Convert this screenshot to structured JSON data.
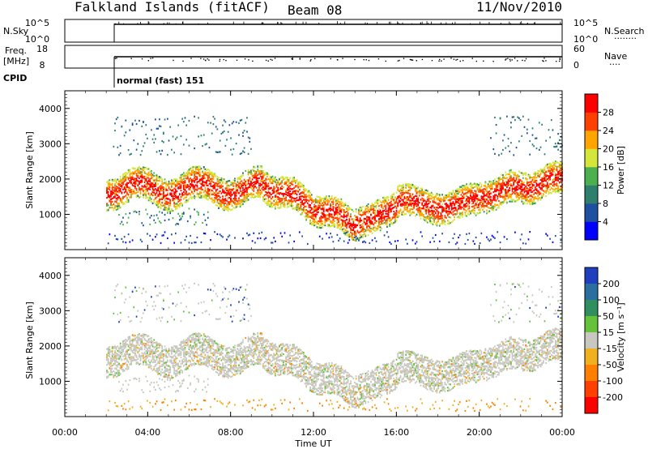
{
  "header": {
    "title": "Falkland Islands (fitACF)",
    "beam": "Beam 08",
    "date": "11/Nov/2010"
  },
  "chart_data": [
    {
      "type": "line",
      "name": "sky-search-panel",
      "left_label": "N.Sky",
      "right_label": "N.Search",
      "right_dots": "........",
      "left_ticks": [
        "10^5",
        "10^0"
      ],
      "right_ticks": [
        "10^5",
        "10^0"
      ],
      "start_time": "02:00"
    },
    {
      "type": "line",
      "name": "freq-nave-panel",
      "left_label_1": "Freq.",
      "left_label_2": "[MHz]",
      "right_label": "Nave",
      "right_dots": "....",
      "left_ticks": [
        "18",
        "8"
      ],
      "right_ticks": [
        "60",
        "0"
      ]
    },
    {
      "type": "table",
      "name": "cpid-panel",
      "label": "CPID",
      "mode": "normal (fast) 151"
    },
    {
      "type": "heatmap",
      "name": "power-panel",
      "ylabel": "Slant Range [km]",
      "ylim": [
        0,
        4500
      ],
      "y_ticks": [
        "1000",
        "2000",
        "3000",
        "4000"
      ],
      "colorbar_label": "Power [dB]",
      "colorbar_ticks": [
        "4",
        "8",
        "12",
        "16",
        "20",
        "24",
        "28"
      ],
      "colorbar_colors": [
        "#0000ff",
        "#1f4fa0",
        "#2f7f6f",
        "#4caf50",
        "#d4e63a",
        "#ffa500",
        "#ff4000",
        "#ff0000"
      ]
    },
    {
      "type": "heatmap",
      "name": "velocity-panel",
      "ylabel": "Slant Range [km]",
      "ylim": [
        0,
        4500
      ],
      "y_ticks": [
        "1000",
        "2000",
        "3000",
        "4000"
      ],
      "colorbar_label": "Velocity [m s⁻¹]",
      "colorbar_ticks": [
        "200",
        "100",
        "50",
        "15",
        "-15",
        "-50",
        "-100",
        "-200"
      ],
      "colorbar_colors": [
        "#1f3fbf",
        "#2a6fa0",
        "#2f8f5f",
        "#66c23a",
        "#c8c8c0",
        "#f0b020",
        "#ff8000",
        "#ff4000",
        "#ff0000"
      ]
    }
  ],
  "x_axis": {
    "label": "Time UT",
    "ticks": [
      "00:00",
      "04:00",
      "08:00",
      "12:00",
      "16:00",
      "20:00",
      "00:00"
    ]
  }
}
